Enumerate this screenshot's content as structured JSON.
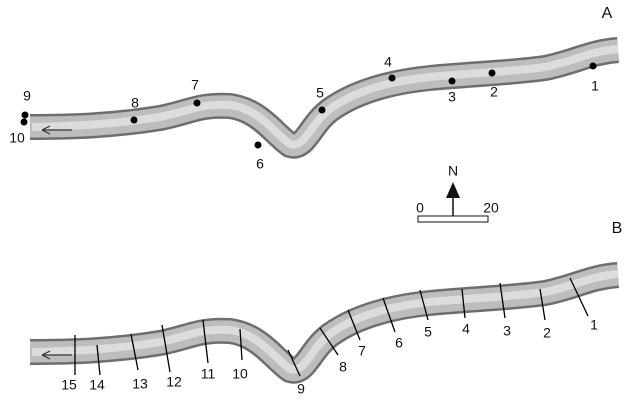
{
  "panel_a": {
    "label": "A",
    "points": [
      "1",
      "2",
      "3",
      "4",
      "5",
      "6",
      "7",
      "8",
      "9",
      "10"
    ]
  },
  "panel_b": {
    "label": "B",
    "sections": [
      "1",
      "2",
      "3",
      "4",
      "5",
      "6",
      "7",
      "8",
      "9",
      "10",
      "11",
      "12",
      "13",
      "14",
      "15"
    ]
  },
  "north": "N",
  "scale": {
    "start": "0",
    "end": "20"
  }
}
